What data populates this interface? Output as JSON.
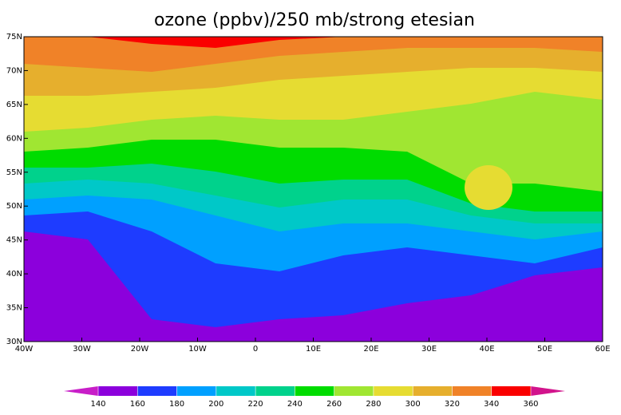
{
  "title": "ozone (ppbv)/250 mb/strong etesian",
  "lon_ticks": [
    {
      "value": -40,
      "label": "40W"
    },
    {
      "value": -30,
      "label": "30W"
    },
    {
      "value": -20,
      "label": "20W"
    },
    {
      "value": -10,
      "label": "10W"
    },
    {
      "value": 0,
      "label": "0"
    },
    {
      "value": 10,
      "label": "10E"
    },
    {
      "value": 20,
      "label": "20E"
    },
    {
      "value": 30,
      "label": "30E"
    },
    {
      "value": 40,
      "label": "40E"
    },
    {
      "value": 50,
      "label": "50E"
    },
    {
      "value": 60,
      "label": "60E"
    }
  ],
  "lat_ticks": [
    {
      "value": 30,
      "label": "30N"
    },
    {
      "value": 35,
      "label": "35N"
    },
    {
      "value": 40,
      "label": "40N"
    },
    {
      "value": 45,
      "label": "45N"
    },
    {
      "value": 50,
      "label": "50N"
    },
    {
      "value": 55,
      "label": "55N"
    },
    {
      "value": 60,
      "label": "60N"
    },
    {
      "value": 65,
      "label": "65N"
    },
    {
      "value": 70,
      "label": "70N"
    },
    {
      "value": 75,
      "label": "75N"
    }
  ],
  "colorbar": {
    "levels": [
      140,
      160,
      180,
      200,
      220,
      240,
      260,
      280,
      300,
      320,
      340,
      360
    ],
    "under_color": "#c81ec8",
    "over_color": "#d2148c",
    "colors": [
      "#8c00dc",
      "#1e3cff",
      "#00a0ff",
      "#00c8c8",
      "#00d28c",
      "#00dc00",
      "#a0e632",
      "#e6dc32",
      "#e6af2d",
      "#f08228",
      "#fa0000"
    ]
  }
}
